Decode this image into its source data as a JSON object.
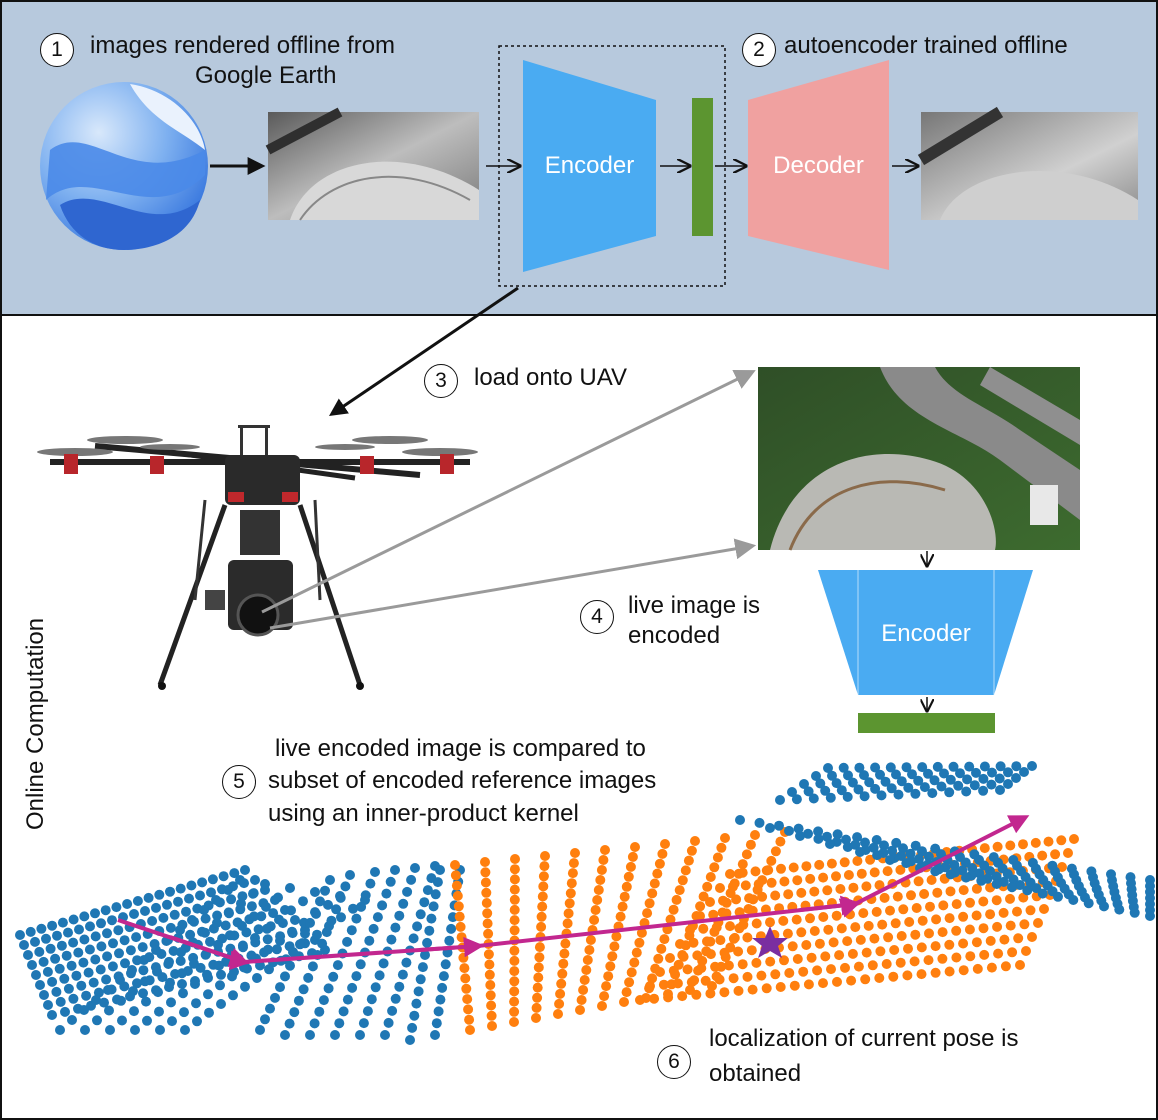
{
  "offline_section": {
    "step1_number": "1",
    "step1_text_line1": "images rendered offline from",
    "step1_text_line2": "Google Earth",
    "step2_number": "2",
    "step2_text": "autoencoder trained offline",
    "encoder_label": "Encoder",
    "decoder_label": "Decoder",
    "background_color": "#b7c9dd"
  },
  "online_section": {
    "side_label": "Online Computation",
    "step3_number": "3",
    "step3_text": "load onto UAV",
    "step4_number": "4",
    "step4_text_line1": "live image is",
    "step4_text_line2": "encoded",
    "encoder_label": "Encoder",
    "step5_number": "5",
    "step5_text_line1": "live encoded image is compared to",
    "step5_text_line2": "subset of encoded reference images",
    "step5_text_line3": "using an inner-product kernel",
    "step6_number": "6",
    "step6_text_line1": "localization of current pose is",
    "step6_text_line2": "obtained"
  },
  "colors": {
    "encoder": "#4aabf2",
    "decoder": "#f0a1a0",
    "latent": "#5c9530",
    "reference_points": "#1f77b4",
    "subset_points": "#ff7f0e",
    "trajectory": "#c2278f",
    "pose_star": "#7a2ea0"
  },
  "icons": [
    "google-earth-icon",
    "uav-drone-icon",
    "star-icon"
  ]
}
